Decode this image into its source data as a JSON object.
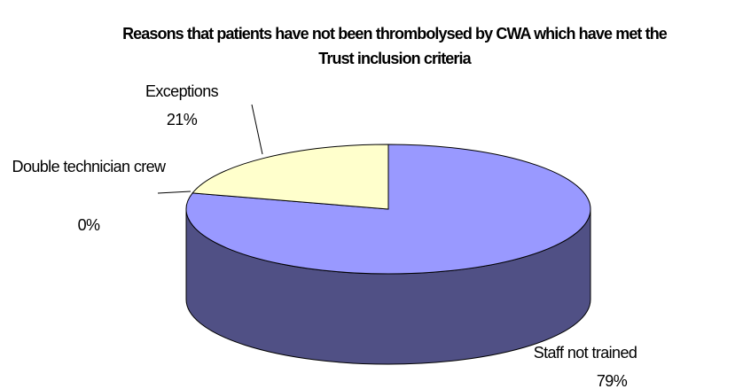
{
  "chart_data": {
    "type": "pie",
    "title": "Reasons that patients have not been thrombolysed by CWA which have met the Trust inclusion criteria",
    "categories": [
      "Staff not trained",
      "Double technician crew",
      "Exceptions"
    ],
    "values": [
      79,
      0,
      21
    ],
    "value_labels": [
      "79%",
      "0%",
      "21%"
    ],
    "colors": [
      "#9999ff",
      "#993366",
      "#ffffcc"
    ]
  }
}
